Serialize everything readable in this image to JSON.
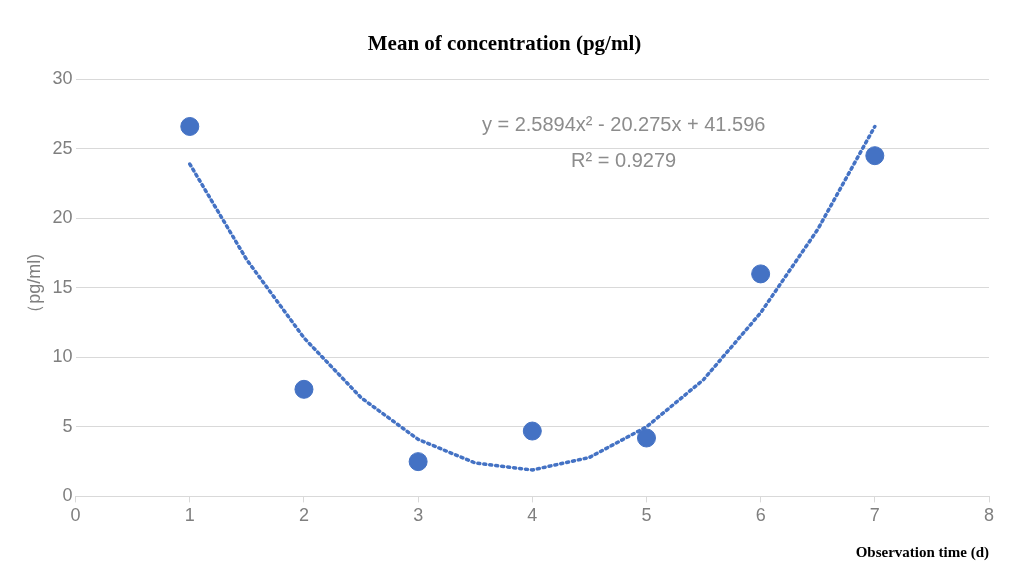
{
  "chart_data": {
    "type": "scatter",
    "title": "Mean of concentration (pg/ml)",
    "xlabel": "Observation time (d)",
    "ylabel": "（pg/ml)",
    "series": [
      {
        "color": "#4472c4",
        "marker": "circle",
        "x": [
          1,
          2,
          3,
          4,
          5,
          6,
          7
        ],
        "values": [
          26.6,
          7.7,
          2.5,
          4.7,
          4.2,
          16.0,
          24.5
        ]
      },
      {
        "type": "line",
        "color": "#4472c4",
        "line_style": "dotted",
        "marker": "none",
        "x": [
          1,
          1.5,
          2,
          2.5,
          3,
          3.5,
          4,
          4.5,
          5,
          5.5,
          6,
          6.5,
          7
        ],
        "values": [
          23.9,
          17.0,
          11.4,
          7.1,
          4.1,
          2.4,
          1.9,
          2.8,
          5.0,
          8.4,
          13.2,
          19.2,
          26.6
        ]
      }
    ],
    "annotations": [
      "y = 2.5894x² - 20.275x + 41.596",
      "R² = 0.9279"
    ],
    "xlim": [
      0,
      8
    ],
    "xticks": [
      0,
      1,
      2,
      3,
      4,
      5,
      6,
      7,
      8
    ],
    "ylim": [
      0,
      30
    ],
    "yticks": [
      0,
      5,
      10,
      15,
      20,
      25,
      30
    ],
    "grid": "y",
    "legend": false
  }
}
